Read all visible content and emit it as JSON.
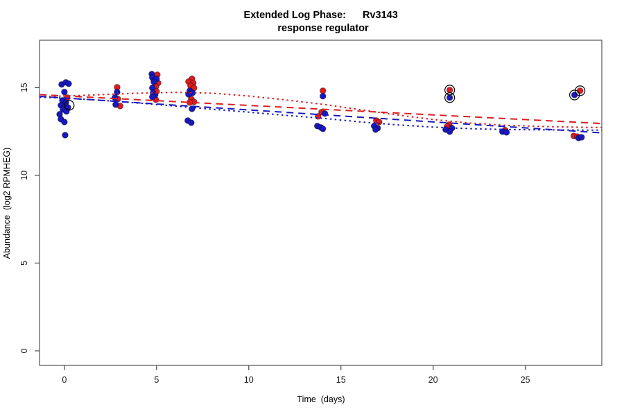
{
  "chart_data": {
    "type": "scatter",
    "title_line1_left": "Extended Log Phase:",
    "title_line1_right": "Rv3143",
    "title_line2": "response regulator",
    "xlabel": "Time  (days)",
    "ylabel": "Abundance  (log2 RPMHEG)",
    "xlim": [
      -1.35,
      29.15
    ],
    "ylim": [
      -0.83,
      17.7
    ],
    "x_ticks": [
      0,
      5,
      10,
      15,
      20,
      25
    ],
    "y_ticks": [
      0,
      5,
      10,
      15
    ],
    "grid": false,
    "legend": "none",
    "colors": {
      "red": "#da1c20",
      "blue": "#1818be",
      "outlier_ring": "#000000",
      "frame": "#606060",
      "tick": "#555555"
    },
    "series": [
      {
        "name": "red-replicate-points",
        "kind": "points",
        "color": "red",
        "points": [
          [
            0.15,
            14.43
          ],
          [
            2.86,
            15.02
          ],
          [
            2.9,
            14.35
          ],
          [
            3.02,
            13.95
          ],
          [
            5.04,
            15.73
          ],
          [
            5.08,
            15.26
          ],
          [
            4.96,
            15.06
          ],
          [
            5.0,
            14.78
          ],
          [
            4.96,
            14.31
          ],
          [
            6.92,
            15.5
          ],
          [
            6.73,
            15.34
          ],
          [
            6.99,
            15.26
          ],
          [
            6.84,
            15.1
          ],
          [
            7.03,
            14.98
          ],
          [
            6.88,
            14.35
          ],
          [
            7.03,
            14.19
          ],
          [
            6.8,
            14.15
          ],
          [
            14.02,
            14.82
          ],
          [
            13.95,
            13.6
          ],
          [
            13.76,
            13.36
          ],
          [
            16.92,
            13.12
          ],
          [
            17.07,
            13.04
          ],
          [
            20.9,
            14.86
          ],
          [
            20.87,
            12.89
          ],
          [
            20.75,
            12.77
          ],
          [
            23.91,
            12.57
          ],
          [
            27.97,
            14.82
          ],
          [
            27.63,
            12.25
          ],
          [
            27.82,
            12.21
          ]
        ]
      },
      {
        "name": "blue-replicate-points",
        "kind": "points",
        "color": "blue",
        "points": [
          [
            -0.15,
            15.18
          ],
          [
            0.08,
            15.3
          ],
          [
            0.23,
            15.22
          ],
          [
            0.0,
            14.75
          ],
          [
            -0.11,
            14.27
          ],
          [
            0.08,
            14.15
          ],
          [
            -0.19,
            13.99
          ],
          [
            0.04,
            13.95
          ],
          [
            0.19,
            13.87
          ],
          [
            -0.08,
            13.75
          ],
          [
            0.11,
            13.64
          ],
          [
            -0.26,
            13.48
          ],
          [
            -0.19,
            13.2
          ],
          [
            0.0,
            13.04
          ],
          [
            0.04,
            12.29
          ],
          [
            2.86,
            14.74
          ],
          [
            2.74,
            14.43
          ],
          [
            2.78,
            14.03
          ],
          [
            4.74,
            15.77
          ],
          [
            4.77,
            15.57
          ],
          [
            5.0,
            15.49
          ],
          [
            4.85,
            15.33
          ],
          [
            4.77,
            14.98
          ],
          [
            4.81,
            14.7
          ],
          [
            4.92,
            14.58
          ],
          [
            4.77,
            14.47
          ],
          [
            6.8,
            14.82
          ],
          [
            6.95,
            14.7
          ],
          [
            6.73,
            14.62
          ],
          [
            6.92,
            13.79
          ],
          [
            6.69,
            13.12
          ],
          [
            6.88,
            13.0
          ],
          [
            14.02,
            14.51
          ],
          [
            14.13,
            13.52
          ],
          [
            13.72,
            12.81
          ],
          [
            13.91,
            12.73
          ],
          [
            14.02,
            12.65
          ],
          [
            16.8,
            12.81
          ],
          [
            16.99,
            12.69
          ],
          [
            16.88,
            12.61
          ],
          [
            20.9,
            14.43
          ],
          [
            21.02,
            12.69
          ],
          [
            20.68,
            12.61
          ],
          [
            20.9,
            12.49
          ],
          [
            23.76,
            12.49
          ],
          [
            23.98,
            12.45
          ],
          [
            27.67,
            14.58
          ],
          [
            27.89,
            12.13
          ],
          [
            28.05,
            12.17
          ]
        ]
      },
      {
        "name": "outlier-rings",
        "kind": "rings",
        "color": "outlier_ring",
        "points": [
          [
            0.26,
            13.99
          ],
          [
            20.9,
            14.86
          ],
          [
            20.9,
            14.43
          ],
          [
            27.97,
            14.82
          ],
          [
            27.67,
            14.58
          ]
        ]
      },
      {
        "name": "red-smooth-fit",
        "kind": "line",
        "dash": "dotted",
        "color": "red",
        "points": [
          [
            -1.35,
            14.48
          ],
          [
            0,
            14.52
          ],
          [
            2,
            14.6
          ],
          [
            4,
            14.68
          ],
          [
            6,
            14.73
          ],
          [
            8,
            14.68
          ],
          [
            10,
            14.52
          ],
          [
            12,
            14.3
          ],
          [
            14,
            14.05
          ],
          [
            16,
            13.75
          ],
          [
            18,
            13.45
          ],
          [
            20,
            13.18
          ],
          [
            22,
            12.98
          ],
          [
            24,
            12.85
          ],
          [
            26,
            12.78
          ],
          [
            28,
            12.74
          ],
          [
            29.15,
            12.73
          ]
        ]
      },
      {
        "name": "blue-smooth-fit",
        "kind": "line",
        "dash": "dotted",
        "color": "blue",
        "points": [
          [
            -1.35,
            14.45
          ],
          [
            0,
            14.4
          ],
          [
            2,
            14.28
          ],
          [
            4,
            14.12
          ],
          [
            6,
            13.95
          ],
          [
            8,
            13.77
          ],
          [
            10,
            13.6
          ],
          [
            12,
            13.42
          ],
          [
            14,
            13.25
          ],
          [
            16,
            13.05
          ],
          [
            18,
            12.88
          ],
          [
            20,
            12.75
          ],
          [
            22,
            12.66
          ],
          [
            24,
            12.61
          ],
          [
            26,
            12.59
          ],
          [
            28,
            12.58
          ],
          [
            29.15,
            12.58
          ]
        ]
      },
      {
        "name": "red-linear-fit",
        "kind": "line",
        "dash": "dashed",
        "color": "red",
        "points": [
          [
            -1.35,
            14.6
          ],
          [
            29.15,
            12.95
          ]
        ]
      },
      {
        "name": "blue-linear-fit",
        "kind": "line",
        "dash": "dashed",
        "color": "blue",
        "points": [
          [
            -1.35,
            14.5
          ],
          [
            29.15,
            12.42
          ]
        ]
      }
    ]
  }
}
